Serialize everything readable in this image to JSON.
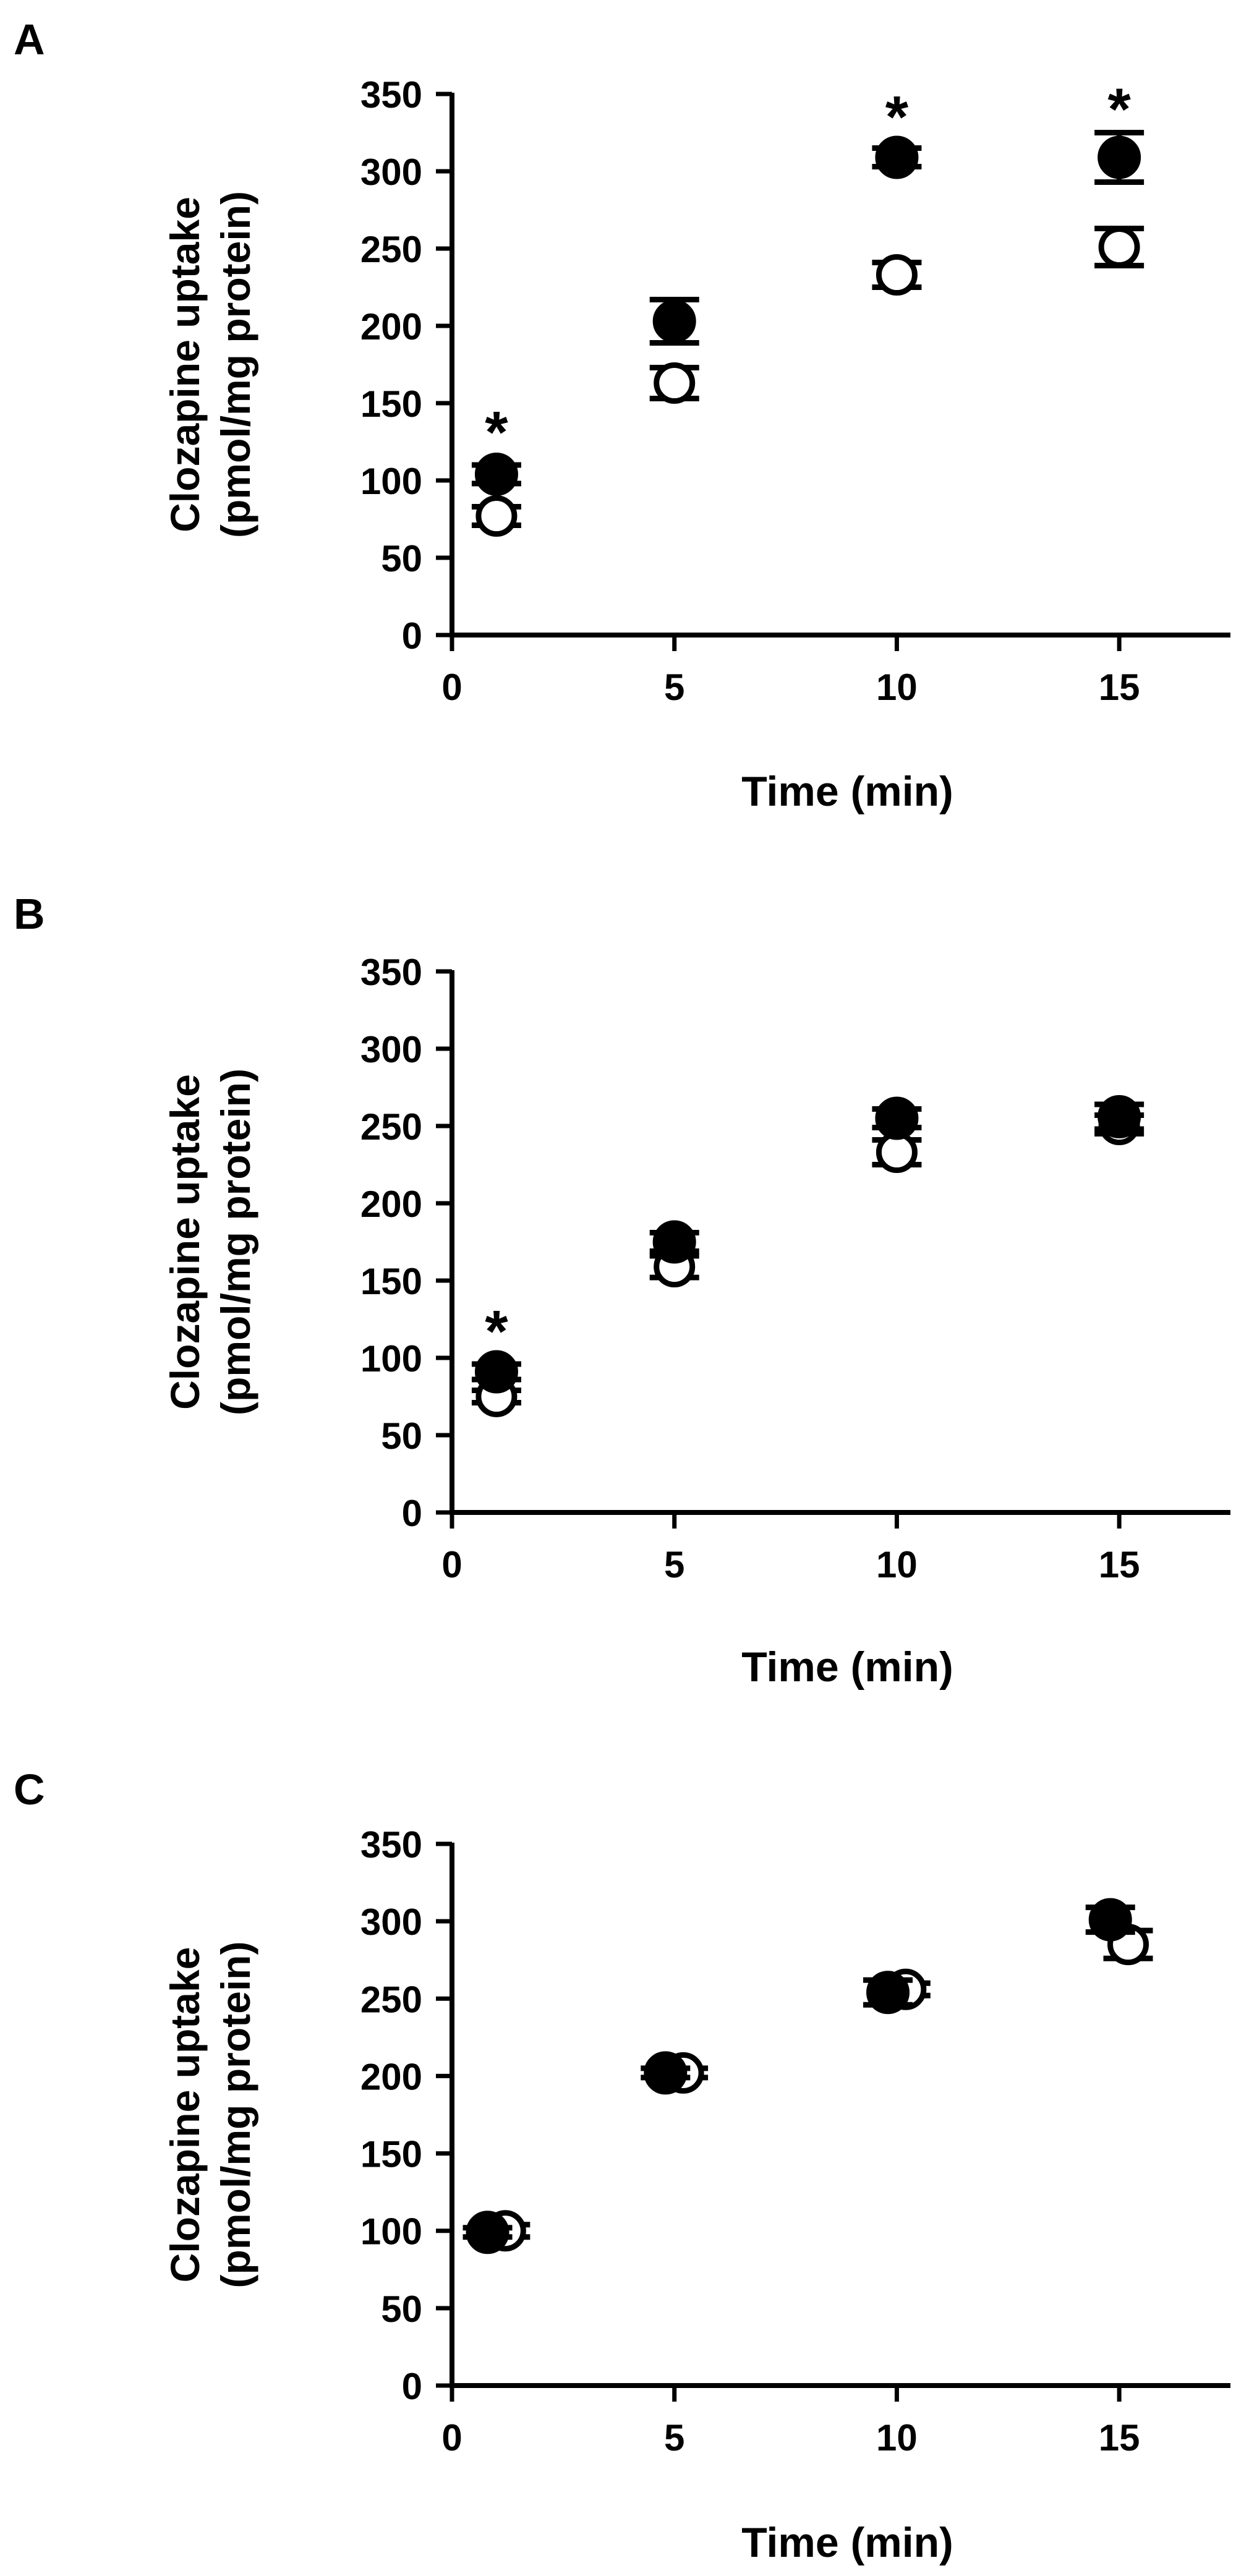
{
  "figure": {
    "colors": {
      "axis": "#000000",
      "filled_marker": "#000000",
      "open_marker_fill": "#ffffff",
      "background": "#ffffff"
    }
  },
  "chart_data": [
    {
      "panel": "A",
      "type": "scatter",
      "title": "",
      "xlabel": "Time (min)",
      "ylabel_lines": [
        "Clozapine uptake",
        "(pmol/mg protein)"
      ],
      "xlim": [
        0,
        17.5
      ],
      "ylim": [
        0,
        350
      ],
      "xticks": [
        0,
        5,
        10,
        15
      ],
      "yticks": [
        0,
        50,
        100,
        150,
        200,
        250,
        300,
        350
      ],
      "grid": false,
      "legend": "none",
      "series": [
        {
          "marker": "filled-circle",
          "x": [
            1,
            5,
            10,
            15
          ],
          "y": [
            104,
            203,
            309,
            309
          ],
          "err": [
            6,
            14,
            6,
            16
          ]
        },
        {
          "marker": "open-circle",
          "x": [
            1,
            5,
            10,
            15
          ],
          "y": [
            77,
            163,
            233,
            251
          ],
          "err": [
            6,
            10,
            8,
            12
          ]
        }
      ],
      "annotations": [
        {
          "text": "*",
          "x": 1,
          "y": 136
        },
        {
          "text": "*",
          "x": 10,
          "y": 340
        },
        {
          "text": "*",
          "x": 15,
          "y": 345
        }
      ]
    },
    {
      "panel": "B",
      "type": "scatter",
      "title": "",
      "xlabel": "Time (min)",
      "ylabel_lines": [
        "Clozapine uptake",
        "(pmol/mg protein)"
      ],
      "xlim": [
        0,
        17.5
      ],
      "ylim": [
        0,
        350
      ],
      "xticks": [
        0,
        5,
        10,
        15
      ],
      "yticks": [
        0,
        50,
        100,
        150,
        200,
        250,
        300,
        350
      ],
      "grid": false,
      "legend": "none",
      "series": [
        {
          "marker": "filled-circle",
          "x": [
            1,
            5,
            10,
            15
          ],
          "y": [
            91,
            175,
            255,
            256
          ],
          "err": [
            5,
            6,
            6,
            8
          ]
        },
        {
          "marker": "open-circle",
          "x": [
            1,
            5,
            10,
            15
          ],
          "y": [
            75,
            159,
            233,
            251
          ],
          "err": [
            4,
            7,
            8,
            6
          ]
        }
      ],
      "annotations": [
        {
          "text": "*",
          "x": 1,
          "y": 122
        }
      ]
    },
    {
      "panel": "C",
      "type": "scatter",
      "title": "",
      "xlabel": "Time (min)",
      "ylabel_lines": [
        "Clozapine uptake",
        "(pmol/mg protein)"
      ],
      "xlim": [
        0,
        17.5
      ],
      "ylim": [
        0,
        350
      ],
      "xticks": [
        0,
        5,
        10,
        15
      ],
      "yticks": [
        0,
        50,
        100,
        150,
        200,
        250,
        300,
        350
      ],
      "grid": false,
      "legend": "none",
      "series": [
        {
          "marker": "filled-circle",
          "x": [
            0.8,
            4.8,
            9.8,
            14.8
          ],
          "y": [
            99,
            202,
            254,
            301
          ],
          "err": [
            3,
            3,
            8,
            8
          ]
        },
        {
          "marker": "open-circle",
          "x": [
            1.2,
            5.2,
            10.2,
            15.2
          ],
          "y": [
            100,
            202,
            256,
            285
          ],
          "err": [
            4,
            3,
            4,
            9
          ]
        }
      ],
      "annotations": []
    }
  ]
}
